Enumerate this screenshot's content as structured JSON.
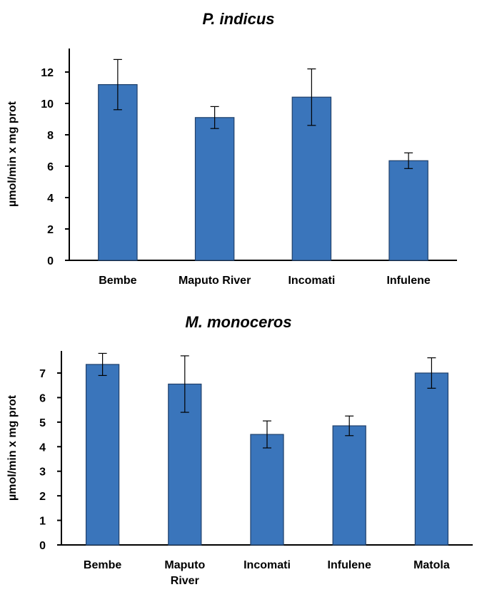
{
  "chart_data": [
    {
      "type": "bar",
      "title": "P. indicus",
      "xlabel": "",
      "ylabel": "µmol/min x mg prot",
      "categories": [
        "Bembe",
        "Maputo River",
        "Incomati",
        "Infulene"
      ],
      "values": [
        11.2,
        9.1,
        10.4,
        6.35
      ],
      "error": [
        1.6,
        0.7,
        1.8,
        0.5
      ],
      "ylim": [
        0,
        13.5
      ],
      "yticks": [
        0,
        2,
        4,
        6,
        8,
        10,
        12
      ],
      "grid": false,
      "bar_color": "#3a75bb",
      "bar_edge_color": "#20406a"
    },
    {
      "type": "bar",
      "title": "M. monoceros",
      "xlabel": "",
      "ylabel": "µmol/min x mg prot",
      "categories": [
        "Bembe",
        "Maputo River",
        "Incomati",
        "Infulene",
        "Matola"
      ],
      "values": [
        7.35,
        6.55,
        4.5,
        4.85,
        7.0
      ],
      "error": [
        0.45,
        1.15,
        0.55,
        0.4,
        0.62
      ],
      "ylim": [
        0,
        7.9
      ],
      "yticks": [
        0,
        1,
        2,
        3,
        4,
        5,
        6,
        7
      ],
      "grid": false,
      "bar_color": "#3a75bb",
      "bar_edge_color": "#20406a"
    }
  ]
}
